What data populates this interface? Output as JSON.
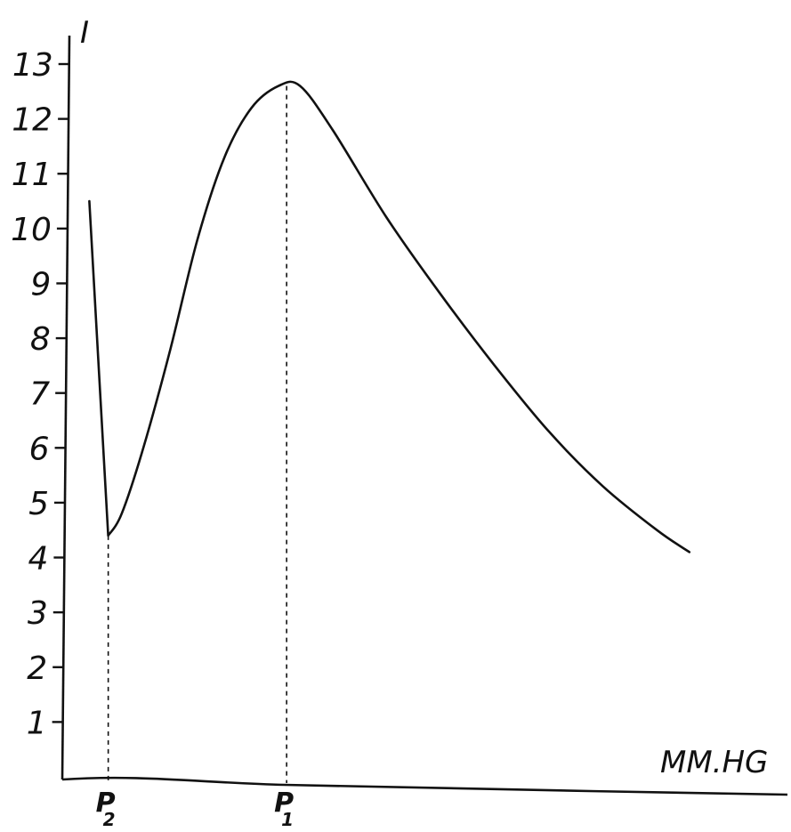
{
  "chart_data": {
    "type": "line",
    "title": "",
    "ylabel": "I",
    "xlabel": "MM.HG",
    "ylim": [
      0,
      13
    ],
    "y_ticks": [
      1,
      2,
      3,
      4,
      5,
      6,
      7,
      8,
      9,
      10,
      11,
      12,
      13
    ],
    "y_tick_labels": [
      "1",
      "2",
      "3",
      "4",
      "5",
      "6",
      "7",
      "8",
      "9",
      "10",
      "11",
      "12",
      "13"
    ],
    "grid": false,
    "x_ticks_printed": false,
    "series": [
      {
        "points": [
          {
            "x": 0.0,
            "y": 10.5
          },
          {
            "x": 0.07,
            "y": 4.4
          },
          {
            "x": 0.12,
            "y": 4.8
          },
          {
            "x": 0.2,
            "y": 6.0
          },
          {
            "x": 0.3,
            "y": 7.8
          },
          {
            "x": 0.4,
            "y": 9.8
          },
          {
            "x": 0.5,
            "y": 11.3
          },
          {
            "x": 0.6,
            "y": 12.2
          },
          {
            "x": 0.7,
            "y": 12.6
          },
          {
            "x": 0.78,
            "y": 12.6
          },
          {
            "x": 0.9,
            "y": 11.8
          },
          {
            "x": 1.1,
            "y": 10.2
          },
          {
            "x": 1.3,
            "y": 8.8
          },
          {
            "x": 1.5,
            "y": 7.5
          },
          {
            "x": 1.7,
            "y": 6.3
          },
          {
            "x": 1.9,
            "y": 5.3
          },
          {
            "x": 2.1,
            "y": 4.5
          },
          {
            "x": 2.22,
            "y": 4.1
          }
        ]
      }
    ],
    "markers": [
      {
        "label": "P",
        "subscript": "2",
        "x": 0.07,
        "y_top": 4.4
      },
      {
        "label": "P",
        "subscript": "1",
        "x": 0.73,
        "y_top": 12.6
      }
    ],
    "x_range": [
      -0.1,
      2.55
    ]
  }
}
